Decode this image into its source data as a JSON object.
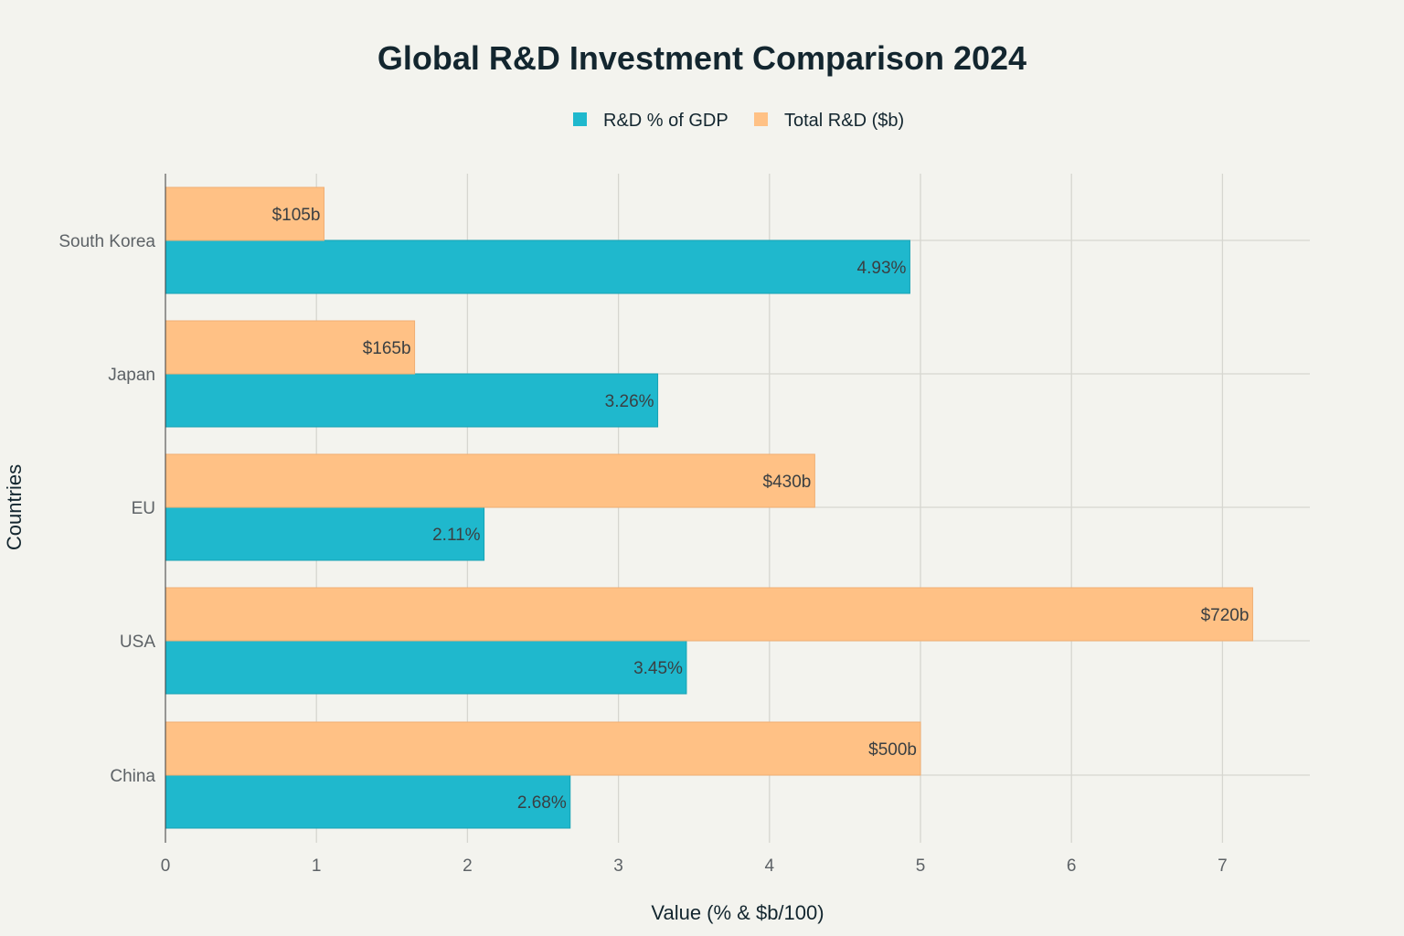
{
  "chart_data": {
    "type": "bar",
    "orientation": "horizontal",
    "title": "Global R&D Investment Comparison 2024",
    "xlabel": "Value (% & $b/100)",
    "ylabel": "Countries",
    "xlim": [
      0,
      7.6
    ],
    "x_ticks": [
      "0",
      "1",
      "2",
      "3",
      "4",
      "5",
      "6",
      "7"
    ],
    "grid": true,
    "legend_position": "top-center",
    "categories": [
      "South Korea",
      "Japan",
      "EU",
      "USA",
      "China"
    ],
    "series": [
      {
        "name": "R&D % of GDP",
        "color": "#1fb8cd",
        "values": [
          4.93,
          3.26,
          2.11,
          3.45,
          2.68
        ],
        "labels": [
          "4.93%",
          "3.26%",
          "2.11%",
          "3.45%",
          "2.68%"
        ]
      },
      {
        "name": "Total R&D ($b)",
        "color": "#ffc185",
        "values": [
          1.05,
          1.65,
          4.3,
          7.2,
          5.0
        ],
        "labels": [
          "$105b",
          "$165b",
          "$430b",
          "$720b",
          "$500b"
        ]
      }
    ]
  }
}
